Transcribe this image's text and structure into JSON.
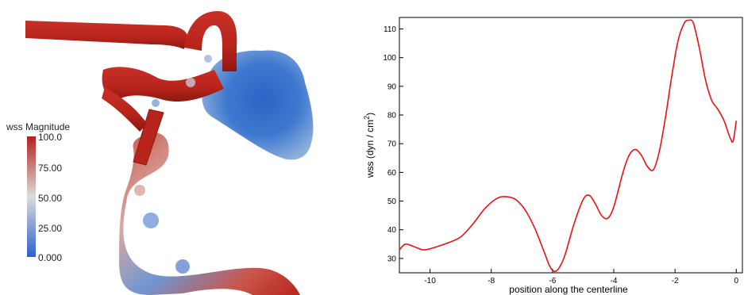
{
  "colorbar": {
    "title": "wss Magnitude",
    "labels": [
      "100.0",
      "75.00",
      "50.00",
      "25.00",
      "0.000"
    ],
    "color_high": "#b2231d",
    "color_mid": "#dcdcdc",
    "color_low": "#2c62c8"
  },
  "render_colors": {
    "vessel_red": "#b7241c",
    "vessel_shadow": "#8e1812",
    "sac_blue": "#3f78cf",
    "sac_light": "#8fb0dc"
  },
  "chart_data": {
    "type": "line",
    "title": "",
    "xlabel": "position along the centerline",
    "ylabel": "wss (dyn / cm",
    "ylabel_sup": "2",
    "ylabel_close": ")",
    "xlim": [
      -11,
      0.2
    ],
    "ylim": [
      25,
      114
    ],
    "xticks": [
      -10,
      -8,
      -6,
      -4,
      -2,
      0
    ],
    "yticks": [
      30,
      40,
      50,
      60,
      70,
      80,
      90,
      100,
      110
    ],
    "line_color": "#ee1111",
    "series": [
      {
        "x": [
          -11.0,
          -10.8,
          -10.5,
          -10.2,
          -9.8,
          -9.4,
          -9.0,
          -8.6,
          -8.2,
          -7.8,
          -7.5,
          -7.2,
          -6.9,
          -6.6,
          -6.3,
          -6.1,
          -5.95,
          -5.8,
          -5.6,
          -5.3,
          -5.0,
          -4.8,
          -4.6,
          -4.4,
          -4.2,
          -4.0,
          -3.7,
          -3.5,
          -3.3,
          -3.1,
          -2.9,
          -2.7,
          -2.5,
          -2.3,
          -2.1,
          -1.9,
          -1.7,
          -1.55,
          -1.4,
          -1.2,
          -1.0,
          -0.8,
          -0.6,
          -0.4,
          -0.2,
          -0.1,
          0.0
        ],
        "y": [
          33,
          35,
          34,
          33,
          34,
          35.5,
          37.5,
          42,
          47.5,
          51,
          51.5,
          50.5,
          47,
          41,
          33,
          27.5,
          25.5,
          26.5,
          31,
          42,
          50.5,
          52,
          49,
          45,
          44,
          48,
          60,
          66,
          68,
          66,
          62,
          61,
          68,
          80,
          94,
          106,
          112,
          113,
          112,
          103,
          92,
          85,
          82,
          78,
          72,
          71,
          78
        ]
      }
    ]
  }
}
